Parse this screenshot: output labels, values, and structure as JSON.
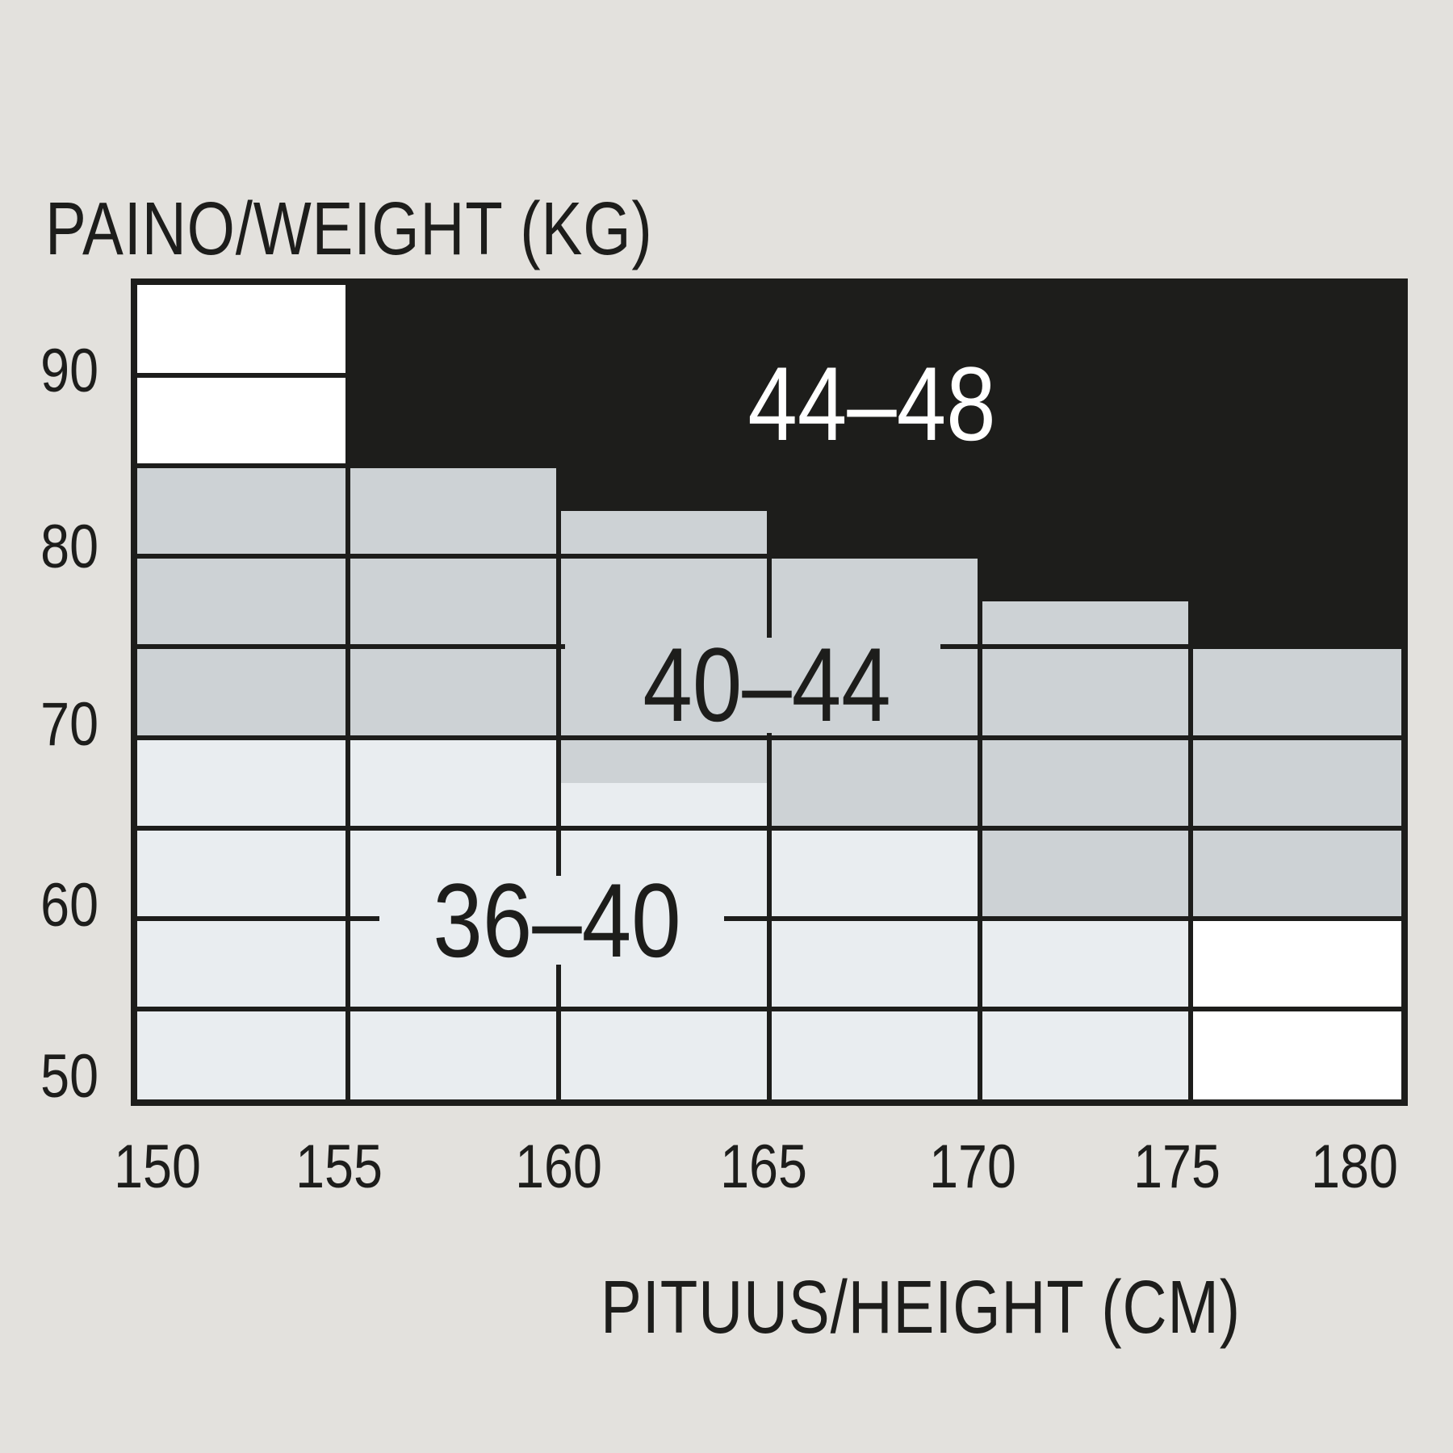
{
  "title": "PAINO/WEIGHT (KG)",
  "x_axis": {
    "label": "PITUUS/HEIGHT (CM)",
    "ticks": [
      "150",
      "155",
      "160",
      "165",
      "170",
      "175",
      "180"
    ]
  },
  "y_axis": {
    "ticks": [
      "90",
      "80",
      "70",
      "60",
      "50"
    ]
  },
  "colors": {
    "background": "#e3e1dd",
    "zone_44_48": "#1d1d1b",
    "zone_40_44": "#cdd2d5",
    "zone_36_40": "#e9edf0",
    "white_cell": "#ffffff",
    "gridline": "#1d1d1b",
    "text": "#1d1d1b",
    "size_label_on_black": "#ffffff"
  },
  "chart_data": {
    "type": "heatmap",
    "title": "PAINO/WEIGHT (KG)",
    "xlabel": "PITUUS/HEIGHT (CM)",
    "ylabel": "",
    "x_ticks": [
      150,
      155,
      160,
      165,
      170,
      175,
      180
    ],
    "y_ticks": [
      90,
      80,
      70,
      60,
      50
    ],
    "x_range_cm": [
      150,
      180
    ],
    "y_range_kg": [
      50,
      95
    ],
    "grid": true,
    "zones": [
      {
        "key": "36-40",
        "label": "36–40",
        "color": "#e9edf0"
      },
      {
        "key": "40-44",
        "label": "40–44",
        "color": "#cdd2d5"
      },
      {
        "key": "44-48",
        "label": "44–48",
        "color": "#1d1d1b"
      },
      {
        "key": "white",
        "label": "",
        "color": "#ffffff"
      }
    ],
    "columns": [
      {
        "height_cm": [
          150,
          155
        ],
        "segments": [
          {
            "zone": "white",
            "kg": [
              95,
              85
            ]
          },
          {
            "zone": "40-44",
            "kg": [
              85,
              70
            ]
          },
          {
            "zone": "36-40",
            "kg": [
              70,
              50
            ]
          }
        ]
      },
      {
        "height_cm": [
          155,
          160
        ],
        "segments": [
          {
            "zone": "44-48",
            "kg": [
              95,
              85
            ]
          },
          {
            "zone": "40-44",
            "kg": [
              85,
              70
            ]
          },
          {
            "zone": "36-40",
            "kg": [
              70,
              50
            ]
          }
        ]
      },
      {
        "height_cm": [
          160,
          165
        ],
        "segments": [
          {
            "zone": "44-48",
            "kg": [
              95,
              82.5
            ]
          },
          {
            "zone": "40-44",
            "kg": [
              82.5,
              67.5
            ]
          },
          {
            "zone": "36-40",
            "kg": [
              67.5,
              50
            ]
          }
        ]
      },
      {
        "height_cm": [
          165,
          170
        ],
        "segments": [
          {
            "zone": "44-48",
            "kg": [
              95,
              80
            ]
          },
          {
            "zone": "40-44",
            "kg": [
              80,
              65
            ]
          },
          {
            "zone": "36-40",
            "kg": [
              65,
              50
            ]
          }
        ]
      },
      {
        "height_cm": [
          170,
          175
        ],
        "segments": [
          {
            "zone": "44-48",
            "kg": [
              95,
              77.5
            ]
          },
          {
            "zone": "40-44",
            "kg": [
              77.5,
              60
            ]
          },
          {
            "zone": "36-40",
            "kg": [
              60,
              50
            ]
          }
        ]
      },
      {
        "height_cm": [
          175,
          180
        ],
        "segments": [
          {
            "zone": "44-48",
            "kg": [
              95,
              75
            ]
          },
          {
            "zone": "40-44",
            "kg": [
              75,
              60
            ]
          },
          {
            "zone": "white",
            "kg": [
              60,
              50
            ]
          }
        ]
      }
    ]
  }
}
